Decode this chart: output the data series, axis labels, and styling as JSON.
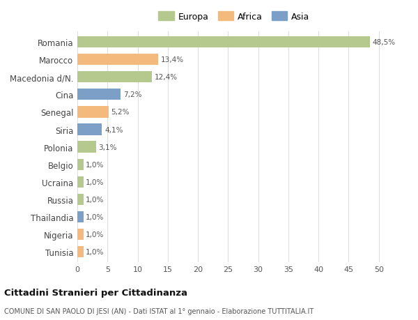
{
  "categories": [
    "Romania",
    "Marocco",
    "Macedonia d/N.",
    "Cina",
    "Senegal",
    "Siria",
    "Polonia",
    "Belgio",
    "Ucraina",
    "Russia",
    "Thailandia",
    "Nigeria",
    "Tunisia"
  ],
  "values": [
    48.5,
    13.4,
    12.4,
    7.2,
    5.2,
    4.1,
    3.1,
    1.0,
    1.0,
    1.0,
    1.0,
    1.0,
    1.0
  ],
  "labels": [
    "48,5%",
    "13,4%",
    "12,4%",
    "7,2%",
    "5,2%",
    "4,1%",
    "3,1%",
    "1,0%",
    "1,0%",
    "1,0%",
    "1,0%",
    "1,0%",
    "1,0%"
  ],
  "colors": [
    "#b5c98e",
    "#f4b97c",
    "#b5c98e",
    "#7b9fc7",
    "#f4b97c",
    "#7b9fc7",
    "#b5c98e",
    "#b5c98e",
    "#b5c98e",
    "#b5c98e",
    "#7b9fc7",
    "#f4b97c",
    "#f4b97c"
  ],
  "legend_labels": [
    "Europa",
    "Africa",
    "Asia"
  ],
  "legend_colors": [
    "#b5c98e",
    "#f4b97c",
    "#7b9fc7"
  ],
  "title": "Cittadini Stranieri per Cittadinanza",
  "subtitle": "COMUNE DI SAN PAOLO DI JESI (AN) - Dati ISTAT al 1° gennaio - Elaborazione TUTTITALIA.IT",
  "xlim": [
    0,
    52
  ],
  "xticks": [
    0,
    5,
    10,
    15,
    20,
    25,
    30,
    35,
    40,
    45,
    50
  ],
  "background_color": "#ffffff",
  "grid_color": "#dddddd"
}
